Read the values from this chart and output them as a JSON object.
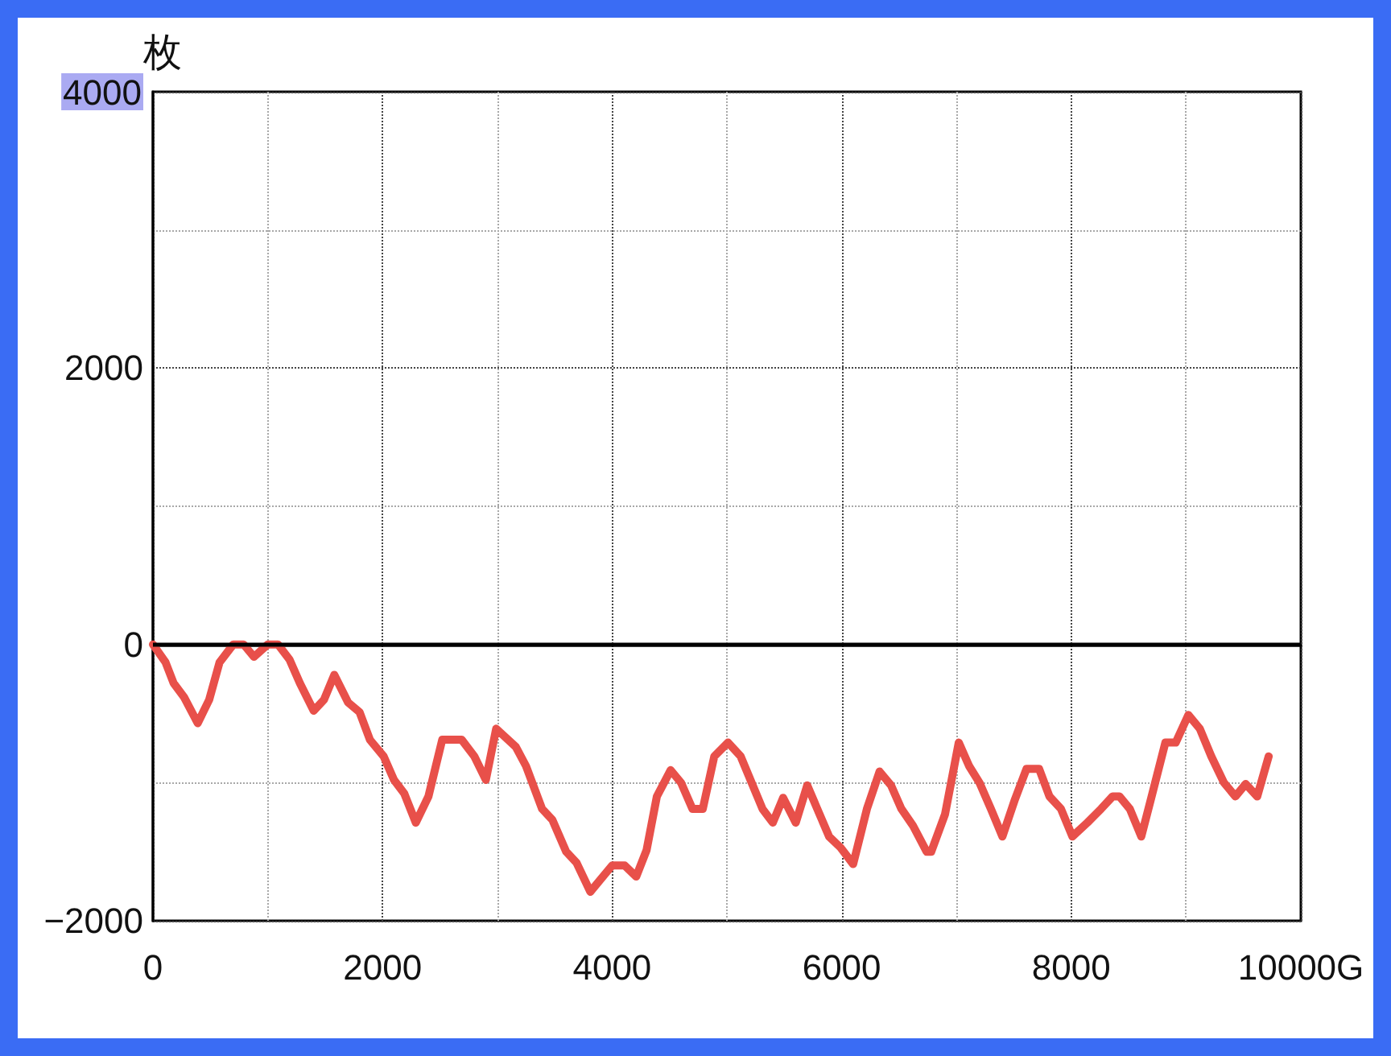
{
  "chart_data": {
    "type": "line",
    "ylabel": "枚",
    "x": [
      0,
      110,
      180,
      270,
      390,
      490,
      580,
      700,
      790,
      880,
      1000,
      1090,
      1190,
      1280,
      1400,
      1490,
      1580,
      1700,
      1800,
      1890,
      2010,
      2100,
      2190,
      2290,
      2400,
      2520,
      2690,
      2800,
      2900,
      2990,
      3160,
      3250,
      3390,
      3480,
      3600,
      3690,
      3810,
      4000,
      4110,
      4210,
      4300,
      4390,
      4510,
      4600,
      4700,
      4790,
      4890,
      5010,
      5120,
      5310,
      5400,
      5490,
      5600,
      5700,
      5890,
      5990,
      6100,
      6220,
      6330,
      6430,
      6520,
      6620,
      6740,
      6780,
      6900,
      7020,
      7110,
      7200,
      7300,
      7400,
      7510,
      7610,
      7720,
      7810,
      7910,
      8010,
      8140,
      8260,
      8360,
      8420,
      8510,
      8610,
      8700,
      8820,
      8910,
      9020,
      9120,
      9220,
      9330,
      9430,
      9520,
      9620,
      9720
    ],
    "values": [
      0,
      -130,
      -280,
      -380,
      -570,
      -400,
      -130,
      0,
      0,
      -90,
      0,
      0,
      -110,
      -280,
      -480,
      -400,
      -220,
      -420,
      -490,
      -690,
      -810,
      -980,
      -1080,
      -1290,
      -1100,
      -690,
      -690,
      -810,
      -980,
      -610,
      -740,
      -880,
      -1190,
      -1270,
      -1500,
      -1580,
      -1790,
      -1600,
      -1600,
      -1680,
      -1490,
      -1100,
      -910,
      -1000,
      -1190,
      -1190,
      -810,
      -710,
      -810,
      -1190,
      -1290,
      -1110,
      -1290,
      -1020,
      -1390,
      -1470,
      -1590,
      -1190,
      -920,
      -1020,
      -1190,
      -1310,
      -1500,
      -1500,
      -1230,
      -710,
      -880,
      -1000,
      -1190,
      -1390,
      -1120,
      -900,
      -900,
      -1100,
      -1190,
      -1390,
      -1290,
      -1190,
      -1100,
      -1100,
      -1190,
      -1390,
      -1100,
      -710,
      -710,
      -510,
      -610,
      -810,
      -1000,
      -1100,
      -1010,
      -1100,
      -810
    ],
    "color": "#e8504a",
    "xlim": [
      0,
      10000
    ],
    "xticks": [
      0,
      {
        "value": 1000,
        "label": null
      },
      2000,
      {
        "value": 3000,
        "label": null
      },
      4000,
      {
        "value": 5000,
        "label": null
      },
      6000,
      {
        "value": 7000,
        "label": null
      },
      8000,
      {
        "value": 9000,
        "label": null
      },
      {
        "value": 10000,
        "label": "10000G"
      }
    ],
    "ylim": [
      -2000,
      4000
    ],
    "yticks": [
      {
        "value": -2000,
        "label": "−2000"
      },
      {
        "value": -1000,
        "label": null
      },
      0,
      {
        "value": 1000,
        "label": null
      },
      2000,
      {
        "value": 3000,
        "label": null
      },
      4000
    ],
    "grid": true,
    "ref_lines": [
      {
        "axis": "y",
        "value": 0,
        "color": "#000000"
      }
    ]
  }
}
